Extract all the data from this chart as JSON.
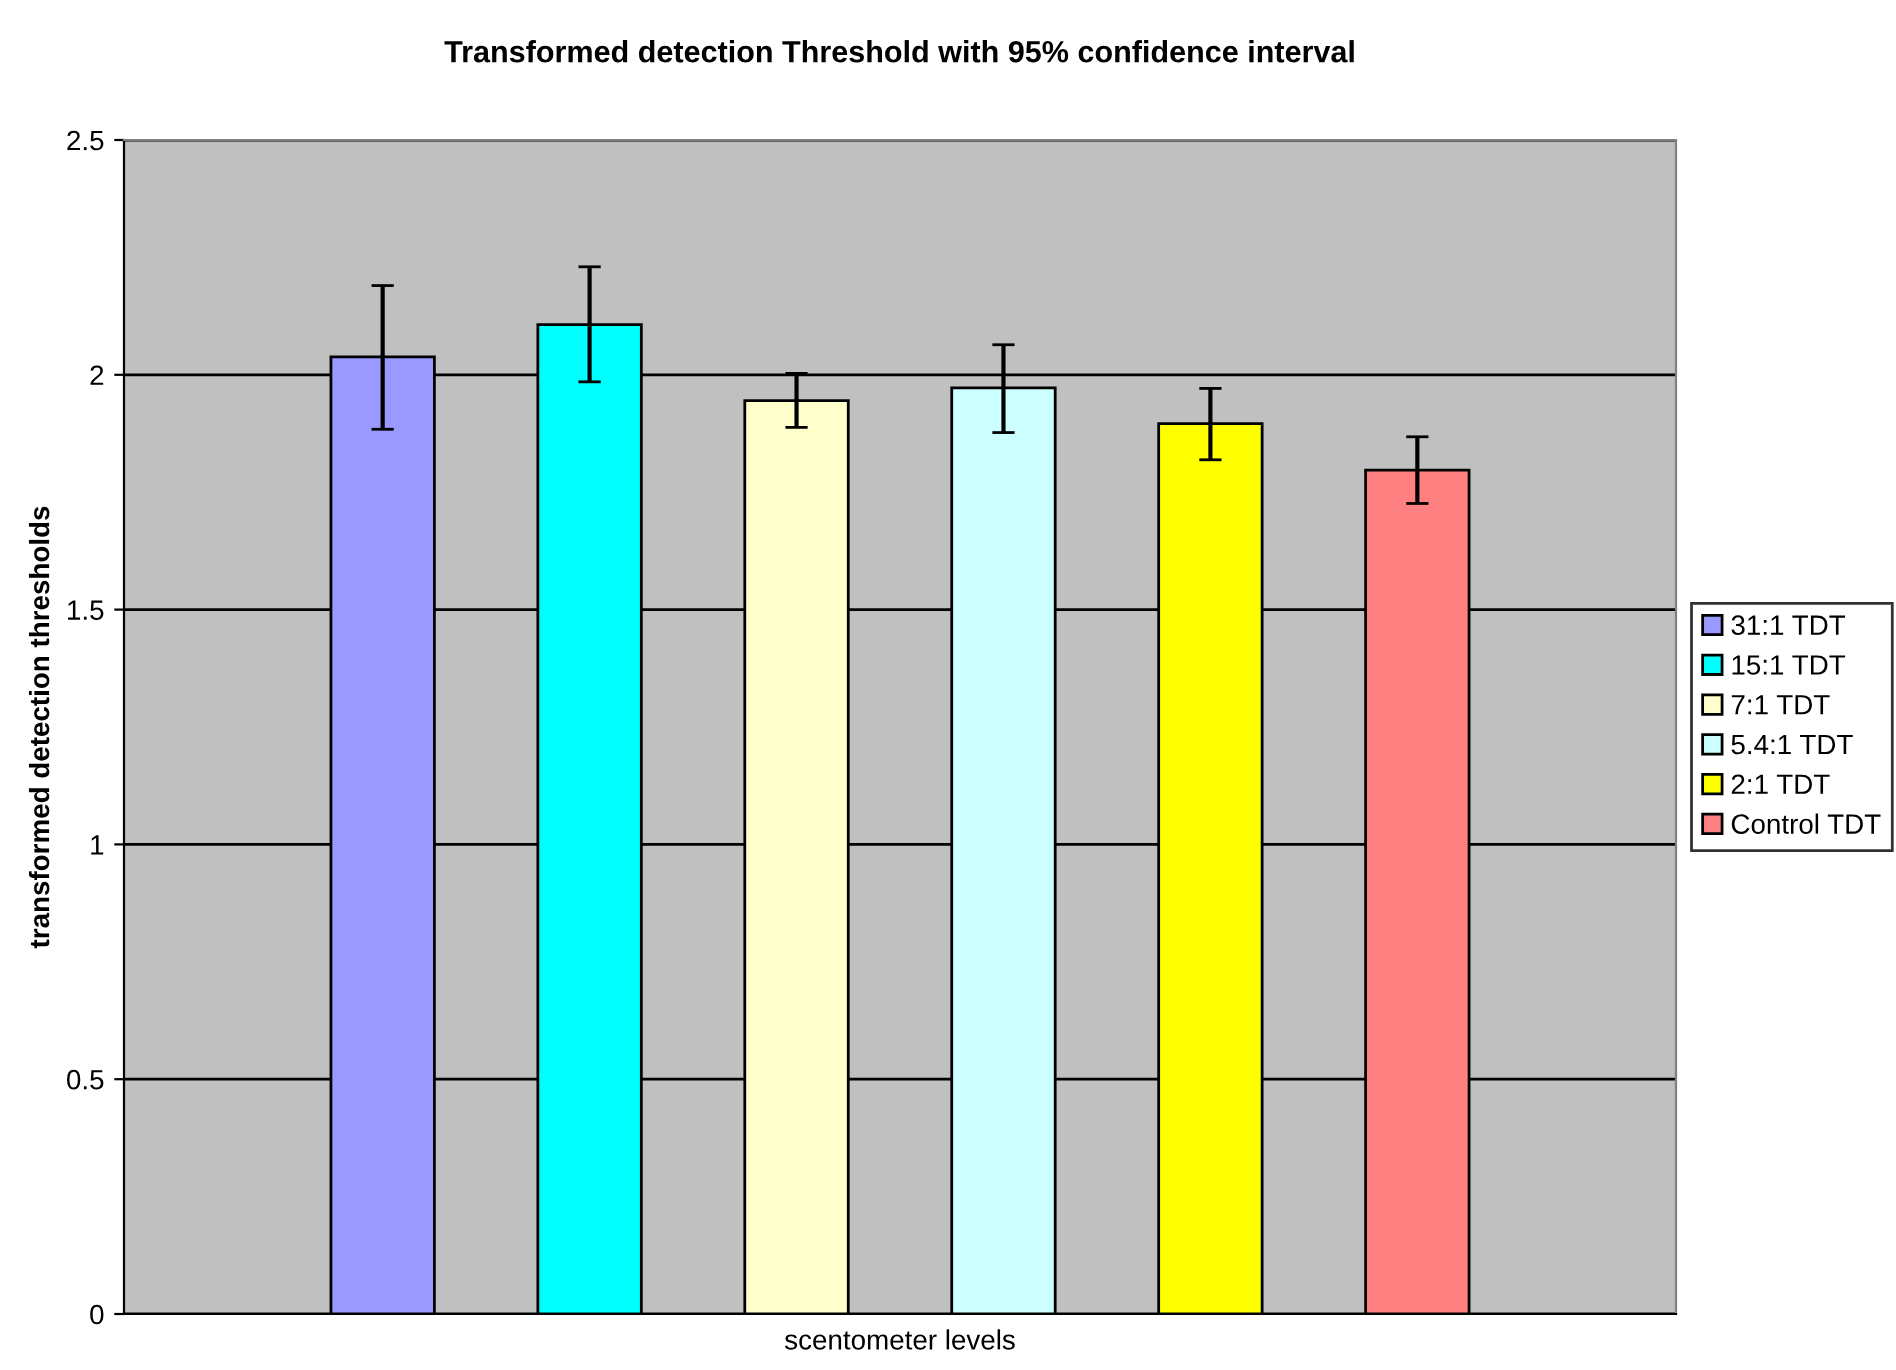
{
  "chart_data": {
    "type": "bar",
    "title": "Transformed detection Threshold with 95% confidence interval",
    "xlabel": "scentometer levels",
    "ylabel": "transformed detection thresholds",
    "categories": [
      null
    ],
    "series": [
      {
        "name": "31:1 TDT",
        "color": "#9999ff",
        "values": [
          2.038
        ],
        "errors": [
          [
            1.884,
            2.19
          ]
        ]
      },
      {
        "name": "15:1 TDT",
        "color": "#00ffff",
        "values": [
          2.107
        ],
        "errors": [
          [
            1.985,
            2.23
          ]
        ]
      },
      {
        "name": "7:1 TDT",
        "color": "#ffffcc",
        "values": [
          1.945
        ],
        "errors": [
          [
            1.888,
            2.003
          ]
        ]
      },
      {
        "name": "5.4:1 TDT",
        "color": "#ccffff",
        "values": [
          1.972
        ],
        "errors": [
          [
            1.877,
            2.064
          ]
        ]
      },
      {
        "name": "2:1 TDT",
        "color": "#ffff00",
        "values": [
          1.896
        ],
        "errors": [
          [
            1.819,
            1.971
          ]
        ]
      },
      {
        "name": "Control TDT",
        "color": "#ff8080",
        "values": [
          1.797
        ],
        "errors": [
          [
            1.726,
            1.868
          ]
        ]
      }
    ],
    "ylim": [
      0,
      2.5
    ],
    "yticks": [
      0,
      0.5,
      1,
      1.5,
      2,
      2.5
    ],
    "grid": "y",
    "legend": "right"
  }
}
